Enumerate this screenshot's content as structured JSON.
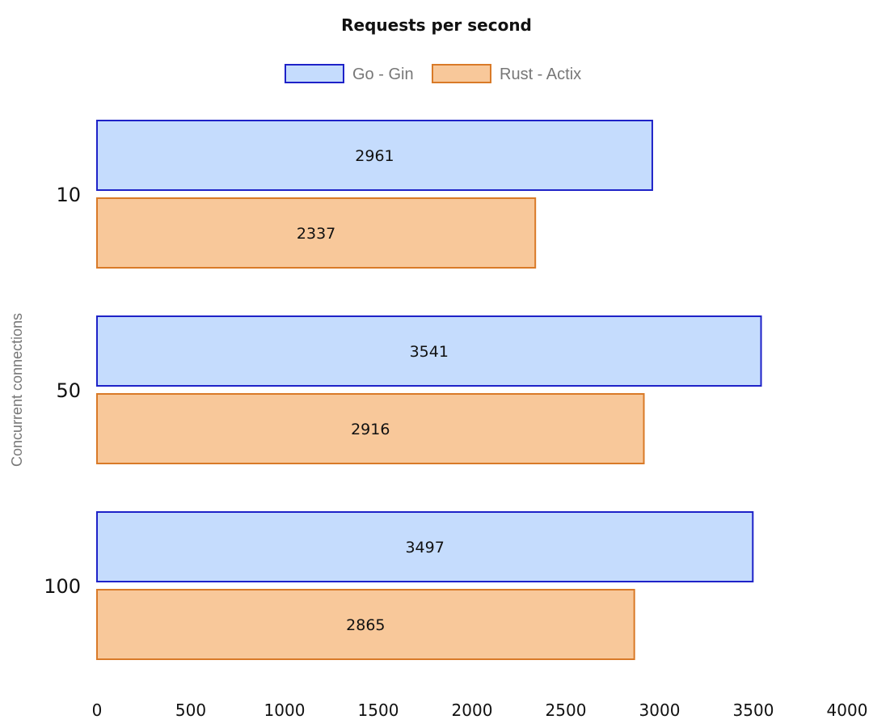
{
  "chart_data": {
    "type": "bar",
    "orientation": "horizontal",
    "title": "Requests per second",
    "xlabel": "",
    "ylabel": "Concurrent connections",
    "categories": [
      "10",
      "50",
      "100"
    ],
    "series": [
      {
        "name": "Go - Gin",
        "values": [
          2961,
          3541,
          3497
        ],
        "fill": "#c5dcfd",
        "stroke": "#1e22c8"
      },
      {
        "name": "Rust - Actix",
        "values": [
          2337,
          2916,
          2865
        ],
        "fill": "#f8c89a",
        "stroke": "#d97a28"
      }
    ],
    "xlim": [
      0,
      4000
    ],
    "x_ticks": [
      0,
      500,
      1000,
      1500,
      2000,
      2500,
      3000,
      3500,
      4000
    ],
    "grid": false,
    "legend_placement": "top-center",
    "data_labels": true
  }
}
